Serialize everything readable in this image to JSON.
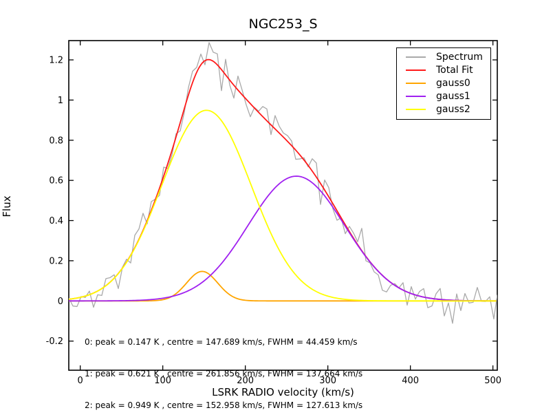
{
  "figure": {
    "title": "NGC253_S",
    "xlabel": "LSRK RADIO velocity (km/s)",
    "ylabel": "Flux"
  },
  "legend": {
    "position": "upper right",
    "items": [
      {
        "label": "Spectrum",
        "color": "#a9a9a9"
      },
      {
        "label": "Total Fit",
        "color": "#ff1a1a"
      },
      {
        "label": "gauss0",
        "color": "#ffa500"
      },
      {
        "label": "gauss1",
        "color": "#a020f0"
      },
      {
        "label": "gauss2",
        "color": "#ffff00"
      }
    ]
  },
  "annotation": {
    "lines": [
      "0: peak = 0.147 K , centre = 147.689 km/s, FWHM = 44.459 km/s",
      "1: peak = 0.621 K , centre = 261.856 km/s, FWHM = 137.664 km/s",
      "2: peak = 0.949 K , centre = 152.958 km/s, FWHM = 127.613 km/s"
    ]
  },
  "chart_data": {
    "type": "line",
    "title": "NGC253_S",
    "xlabel": "LSRK RADIO velocity (km/s)",
    "ylabel": "Flux",
    "xlim": [
      -13.9,
      505.3
    ],
    "ylim": [
      -0.345,
      1.296
    ],
    "xticks": [
      0,
      100,
      200,
      300,
      400,
      500
    ],
    "xtick_labels": [
      "0",
      "100",
      "200",
      "300",
      "400",
      "500"
    ],
    "yticks": [
      -0.2,
      0,
      0.2,
      0.4,
      0.6,
      0.8,
      1,
      1.2
    ],
    "ytick_labels": [
      "-0.2",
      "0",
      "0.2",
      "0.4",
      "0.6",
      "0.8",
      "1",
      "1.2"
    ],
    "grid": false,
    "legend_position": "upper right",
    "flux_unit": "K",
    "series": [
      {
        "name": "Spectrum",
        "color": "#a9a9a9",
        "line_width": 1.3,
        "type": "noisy_spectrum",
        "derivation": "Total Fit plus channel noise (values estimated from pixels)",
        "channel_width_kms": 5,
        "noise_sigma_K": 0.042,
        "seed": 7,
        "notable_features": [
          {
            "v_kms": 47.5,
            "offset_K": -0.075
          },
          {
            "v_kms": 77.5,
            "offset_K": 0.085
          },
          {
            "v_kms": 157.5,
            "offset_K": 0.085
          },
          {
            "v_kms": 162.5,
            "offset_K": 0.045
          },
          {
            "v_kms": 287.5,
            "offset_K": 0.07
          },
          {
            "v_kms": 297.5,
            "offset_K": 0.05
          },
          {
            "v_kms": 452.5,
            "offset_K": -0.115
          },
          {
            "v_kms": 502.5,
            "offset_K": -0.09
          }
        ],
        "approx_peak_K": 1.285,
        "approx_peak_v_kms": 157
      },
      {
        "name": "Total Fit",
        "color": "#ff1a1a",
        "line_width": 1.8,
        "type": "sum_of_gaussians",
        "components": [
          "gauss0",
          "gauss1",
          "gauss2"
        ],
        "approx_peak_K": 1.202,
        "approx_peak_v_kms": 156
      },
      {
        "name": "gauss0",
        "color": "#ffa500",
        "line_width": 1.8,
        "type": "gaussian",
        "peak_K": 0.147,
        "centre_kms": 147.689,
        "fwhm_kms": 44.459
      },
      {
        "name": "gauss1",
        "color": "#a020f0",
        "line_width": 1.8,
        "type": "gaussian",
        "peak_K": 0.621,
        "centre_kms": 261.856,
        "fwhm_kms": 137.664
      },
      {
        "name": "gauss2",
        "color": "#ffff00",
        "line_width": 1.8,
        "type": "gaussian",
        "peak_K": 0.949,
        "centre_kms": 152.958,
        "fwhm_kms": 127.613
      }
    ]
  }
}
